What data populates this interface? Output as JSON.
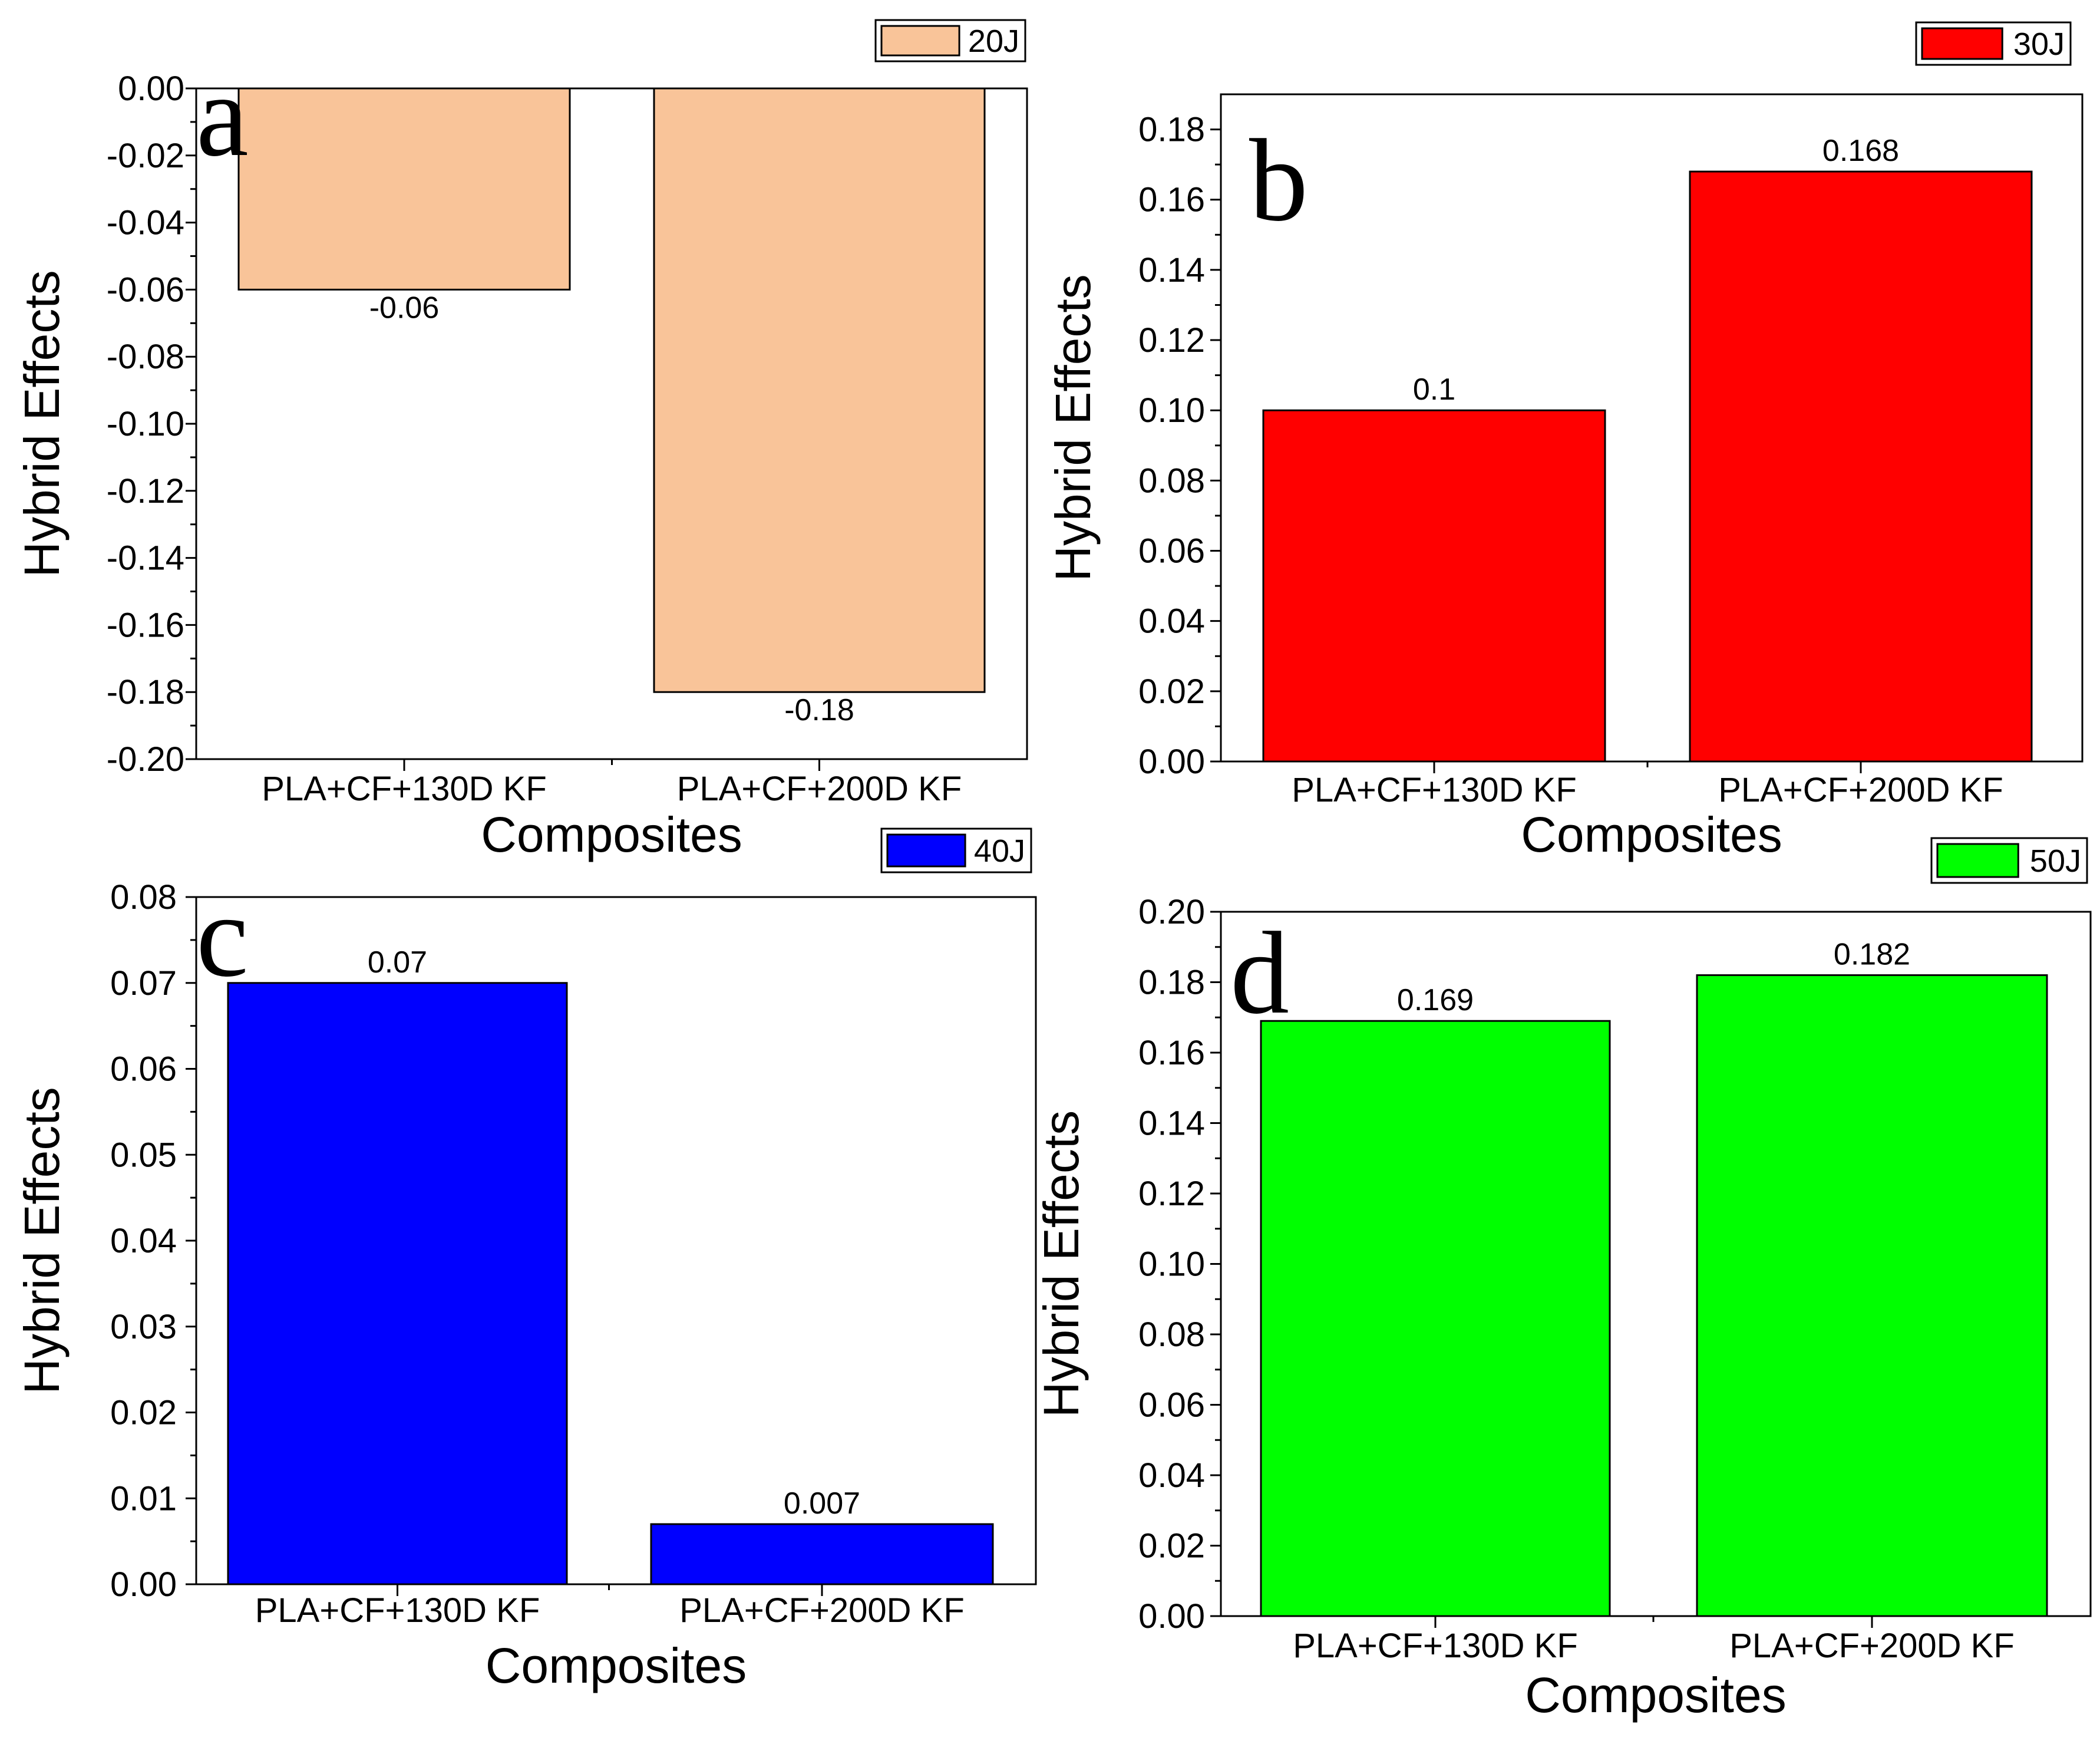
{
  "chart_data": [
    {
      "panel": "a",
      "type": "bar",
      "categories": [
        "PLA+CF+130D KF",
        "PLA+CF+200D KF"
      ],
      "values": [
        -0.06,
        -0.18
      ],
      "value_labels": [
        "-0.06",
        "-0.18"
      ],
      "legend": "20J",
      "color": "#f9c499",
      "xlabel": "Composites",
      "ylabel": "Hybrid Effects",
      "ylim": [
        -0.2,
        0.0
      ],
      "yticks": [
        "0.00",
        "-0.02",
        "-0.04",
        "-0.06",
        "-0.08",
        "-0.10",
        "-0.12",
        "-0.14",
        "-0.16",
        "-0.18",
        "-0.20"
      ]
    },
    {
      "panel": "b",
      "type": "bar",
      "categories": [
        "PLA+CF+130D KF",
        "PLA+CF+200D KF"
      ],
      "values": [
        0.1,
        0.168
      ],
      "value_labels": [
        "0.1",
        "0.168"
      ],
      "legend": "30J",
      "color": "#ff0000",
      "xlabel": "Composites",
      "ylabel": "Hybrid Effects",
      "ylim": [
        0.0,
        0.19
      ],
      "yticks": [
        "0.00",
        "0.02",
        "0.04",
        "0.06",
        "0.08",
        "0.10",
        "0.12",
        "0.14",
        "0.16",
        "0.18"
      ]
    },
    {
      "panel": "c",
      "type": "bar",
      "categories": [
        "PLA+CF+130D KF",
        "PLA+CF+200D KF"
      ],
      "values": [
        0.07,
        0.007
      ],
      "value_labels": [
        "0.07",
        "0.007"
      ],
      "legend": "40J",
      "color": "#0000ff",
      "xlabel": "Composites",
      "ylabel": "Hybrid Effects",
      "ylim": [
        0.0,
        0.08
      ],
      "yticks": [
        "0.00",
        "0.01",
        "0.02",
        "0.03",
        "0.04",
        "0.05",
        "0.06",
        "0.07",
        "0.08"
      ]
    },
    {
      "panel": "d",
      "type": "bar",
      "categories": [
        "PLA+CF+130D KF",
        "PLA+CF+200D KF"
      ],
      "values": [
        0.169,
        0.182
      ],
      "value_labels": [
        "0.169",
        "0.182"
      ],
      "legend": "50J",
      "color": "#00ff00",
      "xlabel": "Composites",
      "ylabel": "Hybrid Effects",
      "ylim": [
        0.0,
        0.2
      ],
      "yticks": [
        "0.00",
        "0.02",
        "0.04",
        "0.06",
        "0.08",
        "0.10",
        "0.12",
        "0.14",
        "0.16",
        "0.18",
        "0.20"
      ]
    }
  ]
}
